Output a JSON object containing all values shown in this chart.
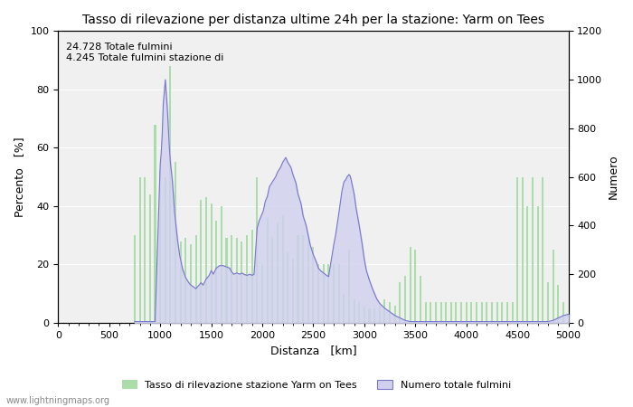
{
  "title": "Tasso di rilevazione per distanza ultime 24h per la stazione: Yarm on Tees",
  "xlabel": "Distanza   [km]",
  "ylabel_left": "Percento   [%]",
  "ylabel_right": "Numero",
  "annotation_lines": [
    "24.728 Totale fulmini",
    "4.245 Totale fulmini stazione di"
  ],
  "xlim": [
    0,
    5000
  ],
  "ylim_left": [
    0,
    100
  ],
  "ylim_right": [
    0,
    1200
  ],
  "xticks": [
    0,
    500,
    1000,
    1500,
    2000,
    2500,
    3000,
    3500,
    4000,
    4500,
    5000
  ],
  "yticks_left": [
    0,
    20,
    40,
    60,
    80,
    100
  ],
  "yticks_right": [
    0,
    200,
    400,
    600,
    800,
    1000,
    1200
  ],
  "legend_labels": [
    "Tasso di rilevazione stazione Yarm on Tees",
    "Numero totale fulmini"
  ],
  "bar_color": "#aaddaa",
  "bar_edge_color": "#aaddaa",
  "line_color": "#7777cc",
  "fill_color": "#d0d0ee",
  "bg_color": "#f0f0f0",
  "watermark": "www.lightningmaps.org",
  "bar_distances": [
    750,
    800,
    850,
    900,
    950,
    1000,
    1050,
    1100,
    1150,
    1200,
    1250,
    1300,
    1350,
    1400,
    1450,
    1500,
    1550,
    1600,
    1650,
    1700,
    1750,
    1800,
    1850,
    1900,
    1950,
    2000,
    2050,
    2100,
    2150,
    2200,
    2250,
    2300,
    2350,
    2400,
    2450,
    2500,
    2550,
    2600,
    2650,
    2700,
    2750,
    2800,
    2850,
    2900,
    2950,
    3000,
    3050,
    3100,
    3150,
    3200,
    3250,
    3300,
    3350,
    3400,
    3450,
    3500,
    3550,
    3600,
    3650,
    3700,
    3750,
    3800,
    3850,
    3900,
    3950,
    4000,
    4050,
    4100,
    4150,
    4200,
    4250,
    4300,
    4350,
    4400,
    4450,
    4500,
    4550,
    4600,
    4650,
    4700,
    4750,
    4800,
    4850,
    4900,
    4950
  ],
  "bar_heights": [
    30,
    50,
    50,
    44,
    68,
    52,
    50,
    88,
    55,
    28,
    29,
    27,
    30,
    42,
    43,
    41,
    35,
    40,
    29,
    30,
    29,
    28,
    30,
    32,
    50,
    20,
    36,
    29,
    34,
    37,
    24,
    22,
    30,
    30,
    29,
    26,
    20,
    20,
    20,
    20,
    20,
    10,
    25,
    8,
    7,
    6,
    5,
    5,
    6,
    8,
    7,
    6,
    14,
    16,
    26,
    25,
    16,
    7,
    7,
    7,
    7,
    7,
    7,
    7,
    7,
    7,
    7,
    7,
    7,
    7,
    7,
    7,
    7,
    7,
    7,
    50,
    50,
    40,
    50,
    40,
    50,
    14,
    25,
    13,
    7
  ],
  "line_distances": [
    750,
    800,
    850,
    900,
    950,
    1000,
    1010,
    1020,
    1030,
    1050,
    1070,
    1090,
    1100,
    1110,
    1120,
    1130,
    1140,
    1150,
    1160,
    1170,
    1180,
    1190,
    1200,
    1220,
    1250,
    1280,
    1300,
    1320,
    1350,
    1380,
    1400,
    1420,
    1450,
    1480,
    1500,
    1520,
    1550,
    1580,
    1600,
    1620,
    1650,
    1680,
    1700,
    1720,
    1750,
    1780,
    1800,
    1820,
    1850,
    1880,
    1900,
    1920,
    1950,
    1970,
    1990,
    2000,
    2010,
    2020,
    2030,
    2050,
    2070,
    2100,
    2130,
    2150,
    2180,
    2200,
    2230,
    2250,
    2280,
    2300,
    2330,
    2350,
    2380,
    2400,
    2430,
    2450,
    2470,
    2500,
    2530,
    2550,
    2570,
    2600,
    2630,
    2650,
    2700,
    2720,
    2750,
    2780,
    2800,
    2820,
    2830,
    2840,
    2850,
    2860,
    2870,
    2880,
    2900,
    2920,
    2950,
    2980,
    3000,
    3020,
    3050,
    3080,
    3100,
    3120,
    3150,
    3200,
    3250,
    3300,
    3350,
    3400,
    3450,
    3500,
    3550,
    3600,
    4800,
    4850,
    4900,
    4950,
    5000
  ],
  "line_values": [
    5,
    5,
    5,
    5,
    5,
    650,
    700,
    780,
    900,
    1000,
    880,
    720,
    660,
    620,
    580,
    520,
    460,
    420,
    380,
    340,
    310,
    280,
    260,
    220,
    185,
    165,
    155,
    150,
    140,
    155,
    165,
    155,
    180,
    195,
    215,
    200,
    225,
    235,
    235,
    235,
    230,
    225,
    210,
    200,
    205,
    200,
    205,
    200,
    195,
    200,
    195,
    200,
    390,
    420,
    440,
    450,
    460,
    480,
    500,
    520,
    560,
    580,
    600,
    620,
    640,
    660,
    680,
    660,
    640,
    610,
    575,
    530,
    490,
    440,
    400,
    360,
    320,
    280,
    250,
    225,
    215,
    205,
    195,
    190,
    320,
    365,
    450,
    540,
    580,
    590,
    600,
    605,
    610,
    605,
    590,
    570,
    530,
    470,
    400,
    320,
    260,
    215,
    175,
    140,
    120,
    100,
    80,
    60,
    45,
    30,
    20,
    10,
    5,
    5,
    5,
    5,
    5,
    10,
    20,
    30,
    35
  ]
}
